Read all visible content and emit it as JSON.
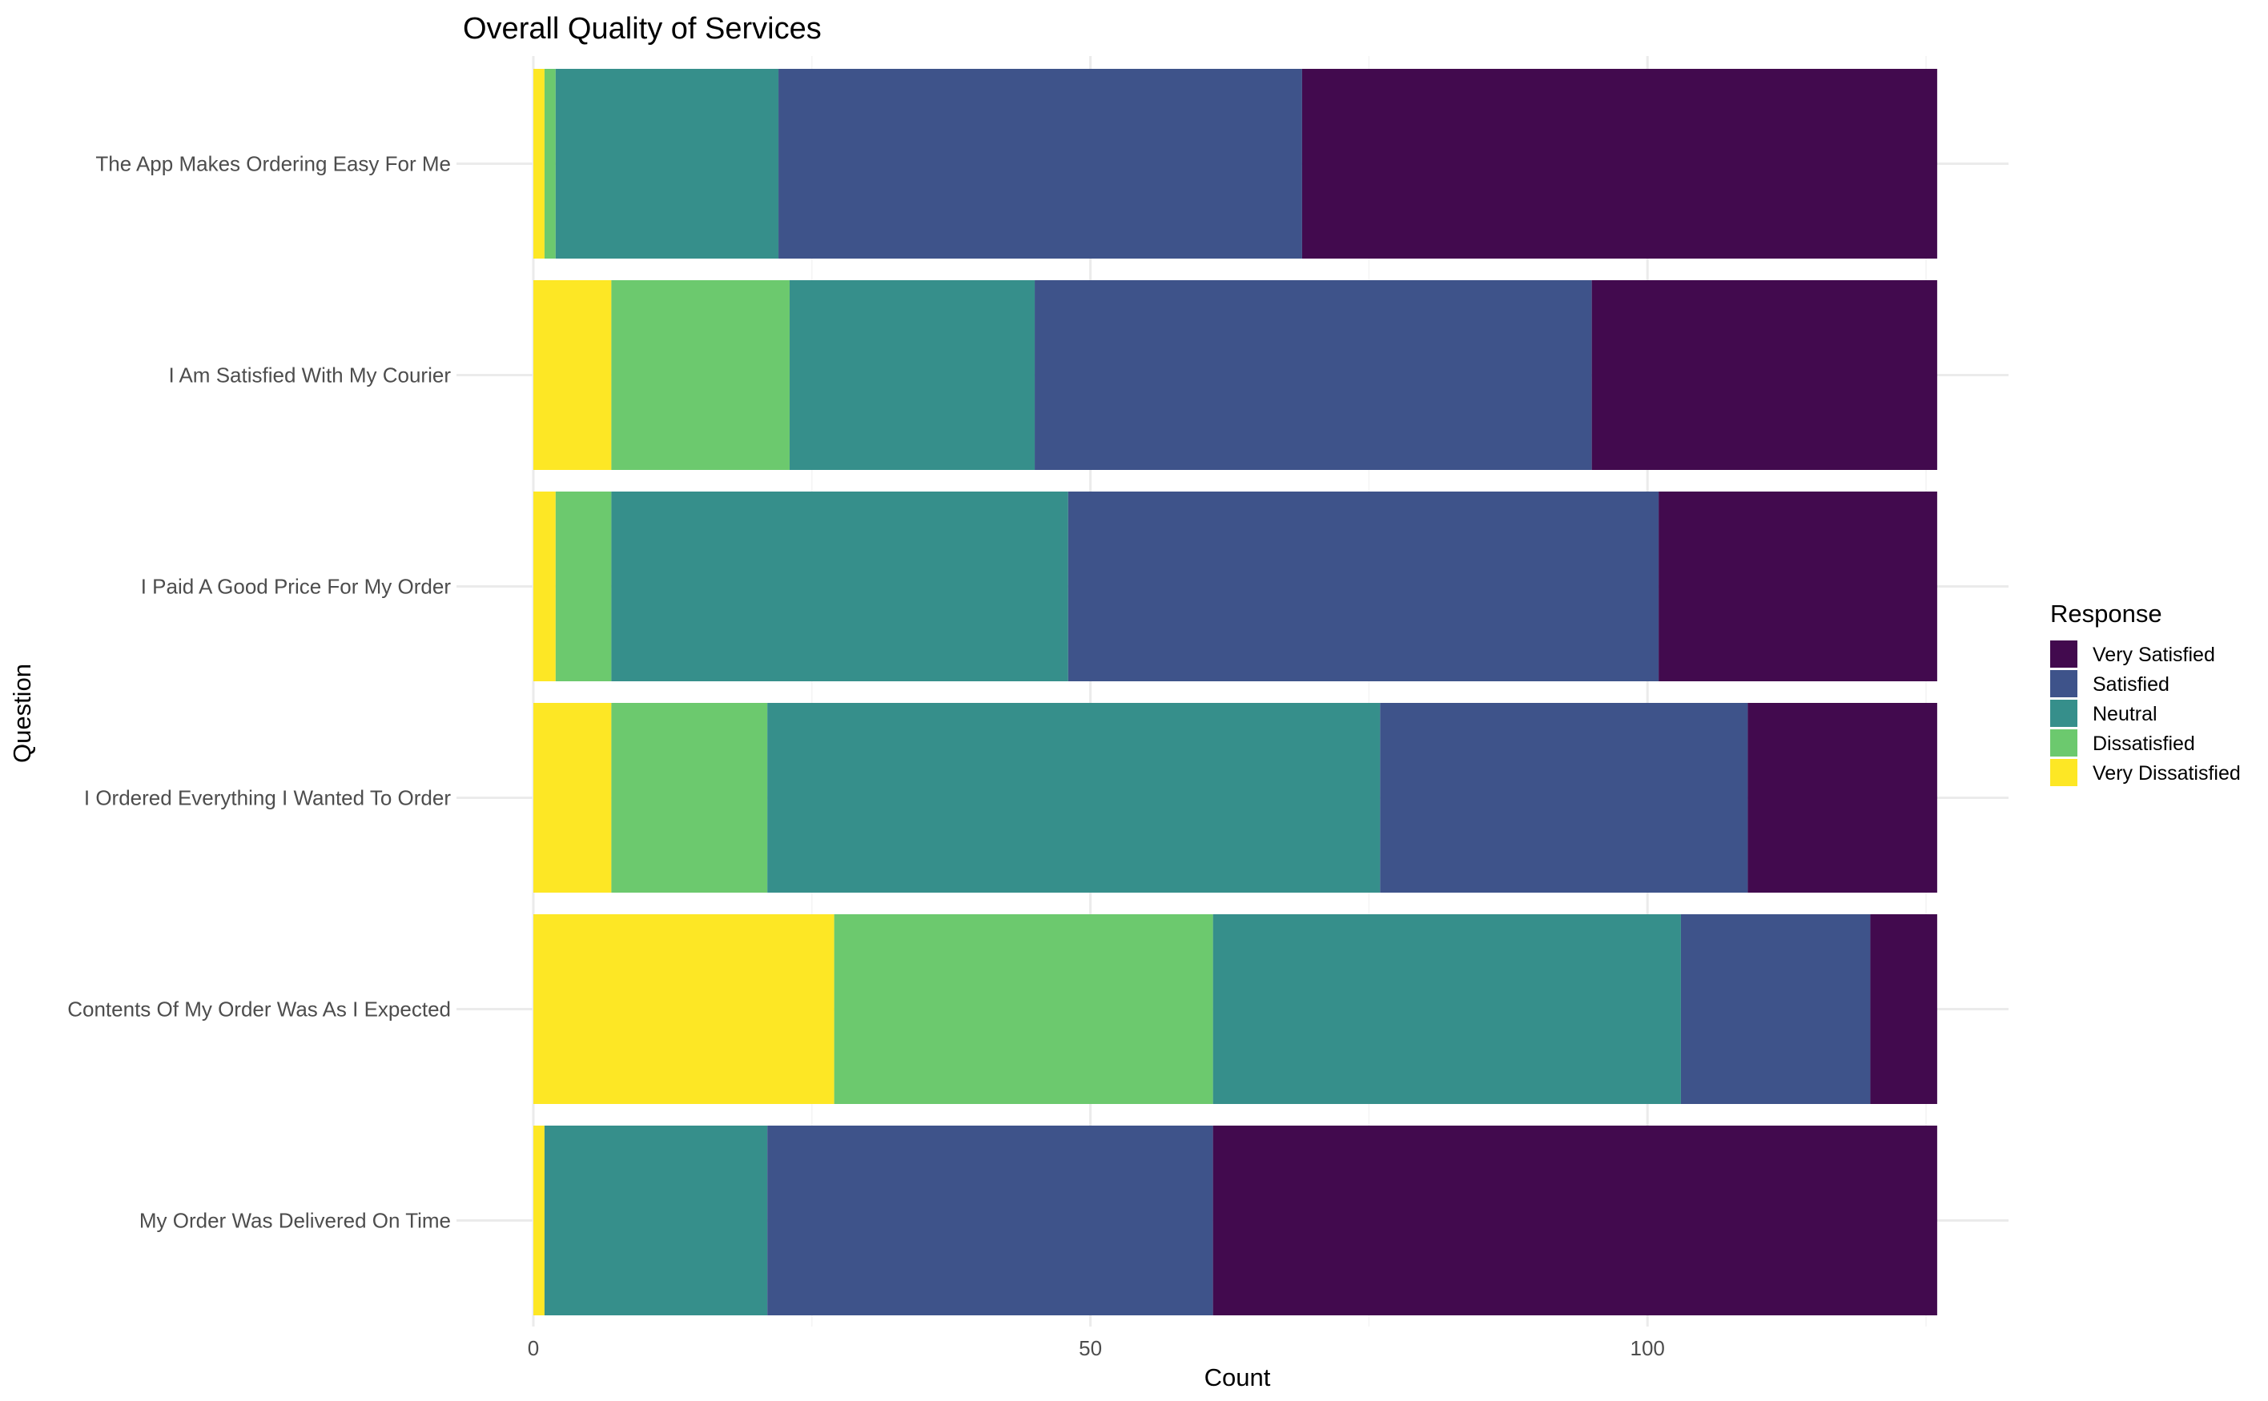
{
  "chart_data": {
    "type": "bar",
    "orientation": "horizontal",
    "stacked": true,
    "title": "Overall Quality of Services",
    "xlabel": "Count",
    "ylabel": "Question",
    "xlim": [
      0,
      126
    ],
    "x_ticks": [
      0,
      50,
      100
    ],
    "x_tick_labels": [
      "0",
      "50",
      "100"
    ],
    "grid": true,
    "legend": {
      "title": "Response",
      "position": "right",
      "order": [
        "Very Satisfied",
        "Satisfied",
        "Neutral",
        "Dissatisfied",
        "Very Dissatisfied"
      ]
    },
    "categories": [
      "The App Makes Ordering Easy For Me",
      "I Am Satisfied With My Courier",
      "I Paid A Good Price For My Order",
      "I Ordered Everything I Wanted To Order",
      "Contents Of My Order Was As I Expected",
      "My Order Was Delivered On Time"
    ],
    "series": [
      {
        "name": "Very Dissatisfied",
        "color": "#fde725",
        "values": [
          1,
          7,
          2,
          7,
          27,
          1
        ]
      },
      {
        "name": "Dissatisfied",
        "color": "#6cc96e",
        "values": [
          1,
          16,
          5,
          14,
          34,
          0
        ]
      },
      {
        "name": "Neutral",
        "color": "#368f8b",
        "values": [
          20,
          22,
          41,
          55,
          42,
          20
        ]
      },
      {
        "name": "Satisfied",
        "color": "#3e538a",
        "values": [
          47,
          50,
          53,
          33,
          17,
          40
        ]
      },
      {
        "name": "Very Satisfied",
        "color": "#420a4e",
        "values": [
          57,
          31,
          25,
          17,
          6,
          65
        ]
      }
    ]
  }
}
